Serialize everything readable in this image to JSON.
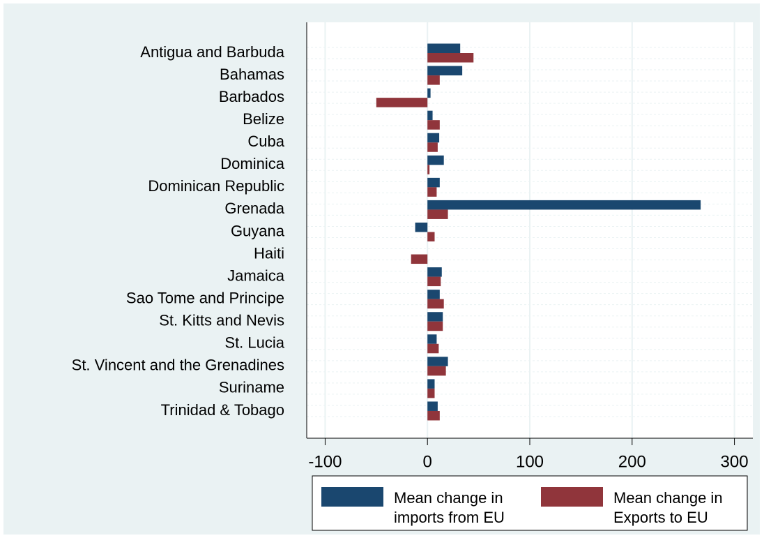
{
  "chart_data": {
    "type": "hbar",
    "categories": [
      "Antigua and Barbuda",
      "Bahamas",
      "Barbados",
      "Belize",
      "Cuba",
      "Dominica",
      "Dominican Republic",
      "Grenada",
      "Guyana",
      "Haiti",
      "Jamaica",
      "Sao Tome and Principe",
      "St. Kitts and Nevis",
      "St. Lucia",
      "St. Vincent and the Grenadines",
      "Suriname",
      "Trinidad & Tobago"
    ],
    "series": [
      {
        "name": "Mean change in imports from EU",
        "color": "#1a476f",
        "values": [
          32,
          34,
          3,
          5,
          11.5,
          16,
          12,
          267,
          -12,
          0,
          14,
          12,
          15,
          9,
          20,
          7,
          10
        ]
      },
      {
        "name": "Mean change in Exports to EU",
        "color": "#90353b",
        "values": [
          45,
          12,
          -50,
          12,
          10,
          2,
          9,
          20,
          7,
          -16,
          13,
          16,
          15,
          11,
          18,
          7,
          12
        ]
      }
    ],
    "xlim": [
      -118,
      318
    ],
    "xticks": [
      -100,
      0,
      100,
      200,
      300
    ],
    "grid": true
  }
}
